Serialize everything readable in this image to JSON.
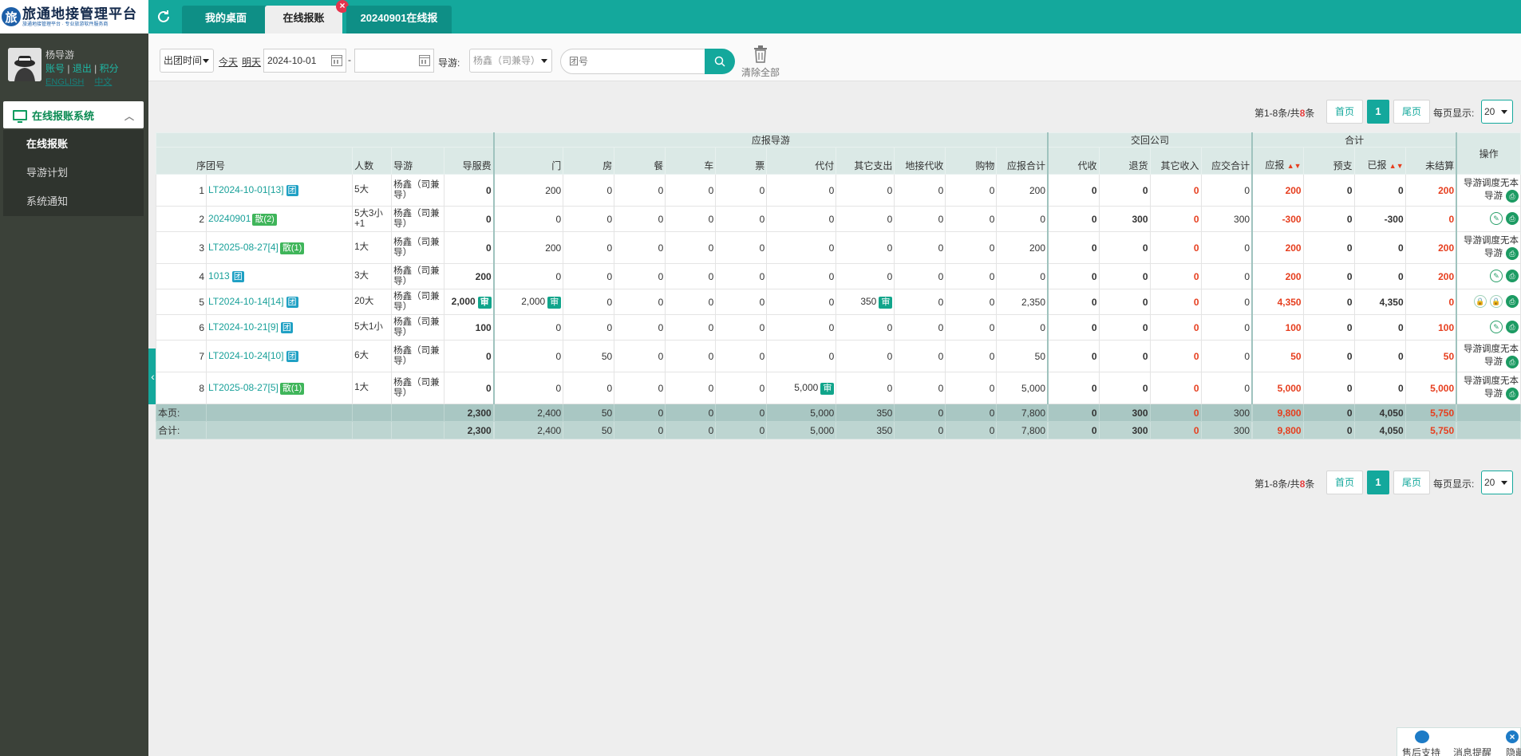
{
  "app": {
    "logo_text": "旅通地接管理平台",
    "logo_subtext": "旅通地接管理平台 · 专业旅游软件服务商"
  },
  "user": {
    "name": "杨导游",
    "link_account": "账号",
    "link_logout": "退出",
    "link_points": "积分",
    "lang_en": "ENGLISH",
    "lang_cn": "中文"
  },
  "sidebar": {
    "header": "在线报账系统",
    "items": [
      {
        "label": "在线报账"
      },
      {
        "label": "导游计划"
      },
      {
        "label": "系统通知"
      }
    ]
  },
  "tabs": [
    {
      "label": "我的桌面"
    },
    {
      "label": "在线报账"
    },
    {
      "label": "20240901在线报"
    }
  ],
  "filters": {
    "time_type": "出团时间",
    "today": "今天",
    "tomorrow": "明天",
    "date_from": "2024-10-01",
    "date_sep": "-",
    "date_to": "",
    "guide_label": "导游:",
    "guide_value": "杨鑫（司兼导）",
    "search_placeholder": "团号",
    "clear_all": "清除全部"
  },
  "pager": {
    "info_prefix": "第1-8条/共",
    "total": "8",
    "info_suffix": "条",
    "first": "首页",
    "page": "1",
    "last": "尾页",
    "size_label": "每页显示:",
    "size": "20"
  },
  "table": {
    "group_headers": {
      "guide": "应报导游",
      "company": "交回公司",
      "total": "合计"
    },
    "headers": {
      "seq_tour": "序团号",
      "people": "人数",
      "guide": "导游",
      "guide_fee": "导服费",
      "men": "门",
      "fang": "房",
      "can": "餐",
      "che": "车",
      "piao": "票",
      "daifu": "代付",
      "qita_zhichu": "其它支出",
      "dijie_daishou": "地接代收",
      "gouwu": "购物",
      "yingbao_heji": "应报合计",
      "daishou": "代收",
      "tuihuo": "退货",
      "qita_shouru": "其它收入",
      "yingjiao_heji": "应交合计",
      "yingbao": "应报",
      "yuzhi": "预支",
      "yibao": "已报",
      "weijiesuan": "未结算",
      "ops": "操作"
    },
    "rows": [
      {
        "seq": "1",
        "tour": "LT2024-10-01[13]",
        "tag": "团",
        "tag_type": "blue",
        "people": "5大",
        "guide": "杨鑫（司兼导）",
        "fee": "0",
        "men": "200",
        "fang": "0",
        "can": "0",
        "che": "0",
        "piao": "0",
        "daifu": "0",
        "qita": "0",
        "dijie": "0",
        "gouwu": "0",
        "yb_heji": "200",
        "daishou": "0",
        "tuihuo": "0",
        "qtsr": "0",
        "yj_heji": "0",
        "yingbao": "200",
        "yuzhi": "0",
        "yibao": "0",
        "weijie": "200",
        "op_text": "导游调度无本导游"
      },
      {
        "seq": "2",
        "tour": "20240901",
        "tag": "散(2)",
        "tag_type": "green",
        "people": "5大3小+1",
        "guide": "杨鑫（司兼导）",
        "fee": "0",
        "men": "0",
        "fang": "0",
        "can": "0",
        "che": "0",
        "piao": "0",
        "daifu": "0",
        "qita": "0",
        "dijie": "0",
        "gouwu": "0",
        "yb_heji": "0",
        "daishou": "0",
        "tuihuo": "300",
        "qtsr": "0",
        "yj_heji": "300",
        "yingbao": "-300",
        "yuzhi": "0",
        "yibao": "-300",
        "weijie": "0",
        "op_text": ""
      },
      {
        "seq": "3",
        "tour": "LT2025-08-27[4]",
        "tag": "散(1)",
        "tag_type": "green",
        "people": "1大",
        "guide": "杨鑫（司兼导）",
        "fee": "0",
        "men": "200",
        "fang": "0",
        "can": "0",
        "che": "0",
        "piao": "0",
        "daifu": "0",
        "qita": "0",
        "dijie": "0",
        "gouwu": "0",
        "yb_heji": "200",
        "daishou": "0",
        "tuihuo": "0",
        "qtsr": "0",
        "yj_heji": "0",
        "yingbao": "200",
        "yuzhi": "0",
        "yibao": "0",
        "weijie": "200",
        "op_text": "导游调度无本导游"
      },
      {
        "seq": "4",
        "tour": "1013",
        "tag": "团",
        "tag_type": "blue",
        "people": "3大",
        "guide": "杨鑫（司兼导）",
        "fee": "200",
        "men": "0",
        "fang": "0",
        "can": "0",
        "che": "0",
        "piao": "0",
        "daifu": "0",
        "qita": "0",
        "dijie": "0",
        "gouwu": "0",
        "yb_heji": "0",
        "daishou": "0",
        "tuihuo": "0",
        "qtsr": "0",
        "yj_heji": "0",
        "yingbao": "200",
        "yuzhi": "0",
        "yibao": "0",
        "weijie": "200",
        "op_text": ""
      },
      {
        "seq": "5",
        "tour": "LT2024-10-14[14]",
        "tag": "团",
        "tag_type": "blue",
        "people": "20大",
        "guide": "杨鑫（司兼导）",
        "fee": "2,000",
        "men": "2,000",
        "fang": "0",
        "can": "0",
        "che": "0",
        "piao": "0",
        "daifu": "0",
        "qita": "350",
        "dijie": "0",
        "gouwu": "0",
        "yb_heji": "2,350",
        "daishou": "0",
        "tuihuo": "0",
        "qtsr": "0",
        "yj_heji": "0",
        "yingbao": "4,350",
        "yuzhi": "0",
        "yibao": "4,350",
        "weijie": "0",
        "op_text": ""
      },
      {
        "seq": "6",
        "tour": "LT2024-10-21[9]",
        "tag": "团",
        "tag_type": "blue",
        "people": "5大1小",
        "guide": "杨鑫（司兼导）",
        "fee": "100",
        "men": "0",
        "fang": "0",
        "can": "0",
        "che": "0",
        "piao": "0",
        "daifu": "0",
        "qita": "0",
        "dijie": "0",
        "gouwu": "0",
        "yb_heji": "0",
        "daishou": "0",
        "tuihuo": "0",
        "qtsr": "0",
        "yj_heji": "0",
        "yingbao": "100",
        "yuzhi": "0",
        "yibao": "0",
        "weijie": "100",
        "op_text": ""
      },
      {
        "seq": "7",
        "tour": "LT2024-10-24[10]",
        "tag": "团",
        "tag_type": "blue",
        "people": "6大",
        "guide": "杨鑫（司兼导）",
        "fee": "0",
        "men": "0",
        "fang": "50",
        "can": "0",
        "che": "0",
        "piao": "0",
        "daifu": "0",
        "qita": "0",
        "dijie": "0",
        "gouwu": "0",
        "yb_heji": "50",
        "daishou": "0",
        "tuihuo": "0",
        "qtsr": "0",
        "yj_heji": "0",
        "yingbao": "50",
        "yuzhi": "0",
        "yibao": "0",
        "weijie": "50",
        "op_text": "导游调度无本导游"
      },
      {
        "seq": "8",
        "tour": "LT2025-08-27[5]",
        "tag": "散(1)",
        "tag_type": "green",
        "people": "1大",
        "guide": "杨鑫（司兼导）",
        "fee": "0",
        "men": "0",
        "fang": "0",
        "can": "0",
        "che": "0",
        "piao": "0",
        "daifu": "5,000",
        "qita": "0",
        "dijie": "0",
        "gouwu": "0",
        "yb_heji": "5,000",
        "daishou": "0",
        "tuihuo": "0",
        "qtsr": "0",
        "yj_heji": "0",
        "yingbao": "5,000",
        "yuzhi": "0",
        "yibao": "0",
        "weijie": "5,000",
        "op_text": "导游调度无本导游"
      }
    ],
    "shen": "审",
    "sum_page": {
      "label": "本页:",
      "fee": "2,300",
      "men": "2,400",
      "fang": "50",
      "can": "0",
      "che": "0",
      "piao": "0",
      "daifu": "5,000",
      "qita": "350",
      "dijie": "0",
      "gouwu": "0",
      "yb_heji": "7,800",
      "daishou": "0",
      "tuihuo": "300",
      "qtsr": "0",
      "yj_heji": "300",
      "yingbao": "9,800",
      "yuzhi": "0",
      "yibao": "4,050",
      "weijie": "5,750"
    },
    "sum_all": {
      "label": "合计:",
      "fee": "2,300",
      "men": "2,400",
      "fang": "50",
      "can": "0",
      "che": "0",
      "piao": "0",
      "daifu": "5,000",
      "qita": "350",
      "dijie": "0",
      "gouwu": "0",
      "yb_heji": "7,800",
      "daishou": "0",
      "tuihuo": "300",
      "qtsr": "0",
      "yj_heji": "300",
      "yingbao": "9,800",
      "yuzhi": "0",
      "yibao": "4,050",
      "weijie": "5,750"
    }
  },
  "widget": {
    "support": "售后支持",
    "notify": "消息提醒",
    "hide": "隐藏"
  },
  "colors": {
    "accent": "#14a89c",
    "sidebar_bg": "#3b4139",
    "danger": "#e63e1e"
  }
}
